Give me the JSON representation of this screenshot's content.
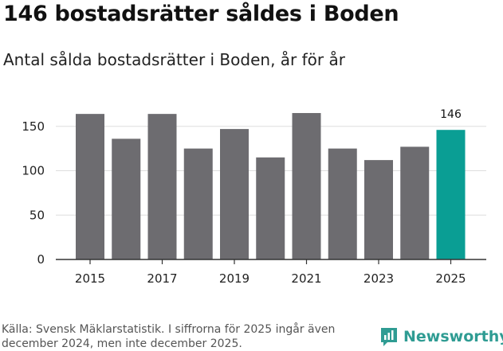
{
  "header": {
    "title": "146 bostadsrätter såldes i Boden",
    "subtitle": "Antal sålda bostadsrätter i Boden, år för år"
  },
  "footer": {
    "source": "Källa: Svensk Mäklarstatistik. I siffrorna för 2025 ingår även december 2024, men inte december 2025.",
    "brand": "Newsworthy"
  },
  "colors": {
    "bar": "#6d6c70",
    "highlight": "#0a9e94",
    "grid": "#dddddd",
    "logo": "#2f9c93"
  },
  "chart_data": {
    "type": "bar",
    "title": "Antal sålda bostadsrätter i Boden, år för år",
    "xlabel": "",
    "ylabel": "",
    "categories": [
      "2015",
      "2016",
      "2017",
      "2018",
      "2019",
      "2020",
      "2021",
      "2022",
      "2023",
      "2024",
      "2025"
    ],
    "values": [
      164,
      136,
      164,
      125,
      147,
      115,
      165,
      125,
      112,
      127,
      146
    ],
    "highlight_index": 10,
    "data_labels": [
      {
        "index": 10,
        "text": "146"
      }
    ],
    "x_tick_labels": [
      "2015",
      "2017",
      "2019",
      "2021",
      "2023",
      "2025"
    ],
    "y_ticks": [
      0,
      50,
      100,
      150
    ],
    "ylim": [
      0,
      170
    ],
    "grid": true
  }
}
